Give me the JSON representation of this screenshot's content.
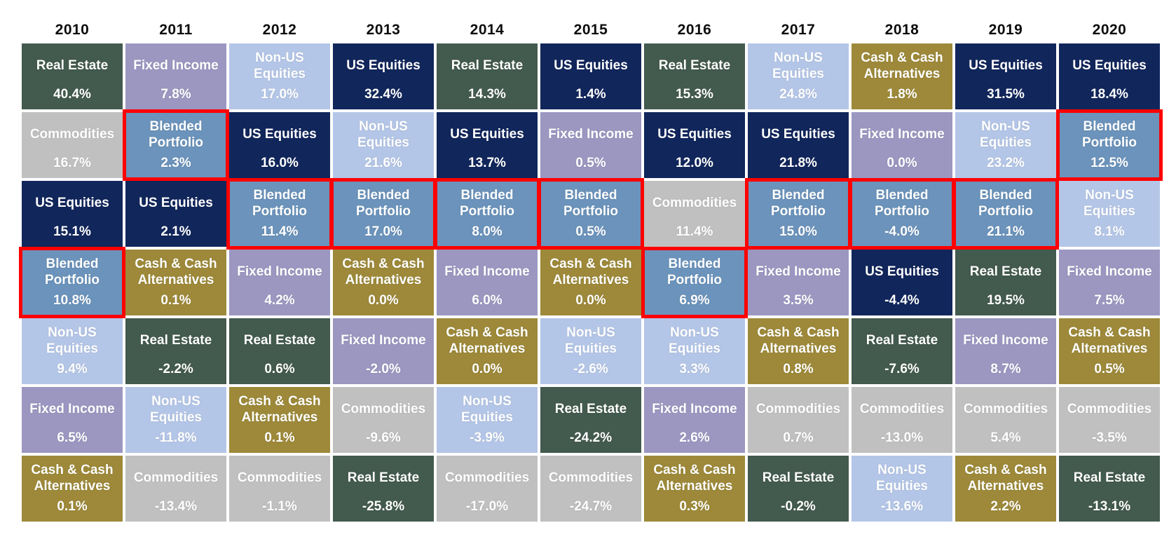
{
  "chart_data": {
    "type": "table",
    "title": "",
    "description": "Annual asset class total returns quilt by year, with Blended Portfolio cells outlined in red",
    "years": [
      "2010",
      "2011",
      "2012",
      "2013",
      "2014",
      "2015",
      "2016",
      "2017",
      "2018",
      "2019",
      "2020"
    ],
    "asset_classes": [
      "Real Estate",
      "US Equities",
      "Non-US Equities",
      "Fixed Income",
      "Commodities",
      "Cash & Cash Alternatives",
      "Blended Portfolio"
    ],
    "asset_colors": {
      "Real Estate": "#435A4E",
      "US Equities": "#11265B",
      "Non-US Equities": "#B4C6E7",
      "Fixed Income": "#9B97C1",
      "Commodities": "#C1C0C0",
      "Cash & Cash Alternatives": "#9D8939",
      "Blended Portfolio": "#6B93BB"
    },
    "text_color": "#FFFFFF",
    "year_label_color": "#0D0D0D",
    "highlight": {
      "asset": "Blended Portfolio",
      "border_color": "#FF0000"
    },
    "columns": [
      {
        "year": "2010",
        "cells": [
          {
            "asset": "Real Estate",
            "value": "40.4%"
          },
          {
            "asset": "Commodities",
            "value": "16.7%"
          },
          {
            "asset": "US Equities",
            "value": "15.1%"
          },
          {
            "asset": "Blended Portfolio",
            "value": "10.8%"
          },
          {
            "asset": "Non-US Equities",
            "value": "9.4%"
          },
          {
            "asset": "Fixed Income",
            "value": "6.5%"
          },
          {
            "asset": "Cash & Cash Alternatives",
            "value": "0.1%"
          }
        ]
      },
      {
        "year": "2011",
        "cells": [
          {
            "asset": "Fixed Income",
            "value": "7.8%"
          },
          {
            "asset": "Blended Portfolio",
            "value": "2.3%"
          },
          {
            "asset": "US Equities",
            "value": "2.1%"
          },
          {
            "asset": "Cash & Cash Alternatives",
            "value": "0.1%"
          },
          {
            "asset": "Real Estate",
            "value": "-2.2%"
          },
          {
            "asset": "Non-US Equities",
            "value": "-11.8%"
          },
          {
            "asset": "Commodities",
            "value": "-13.4%"
          }
        ]
      },
      {
        "year": "2012",
        "cells": [
          {
            "asset": "Non-US Equities",
            "value": "17.0%"
          },
          {
            "asset": "US Equities",
            "value": "16.0%"
          },
          {
            "asset": "Blended Portfolio",
            "value": "11.4%"
          },
          {
            "asset": "Fixed Income",
            "value": "4.2%"
          },
          {
            "asset": "Real Estate",
            "value": "0.6%"
          },
          {
            "asset": "Cash & Cash Alternatives",
            "value": "0.1%"
          },
          {
            "asset": "Commodities",
            "value": "-1.1%"
          }
        ]
      },
      {
        "year": "2013",
        "cells": [
          {
            "asset": "US Equities",
            "value": "32.4%"
          },
          {
            "asset": "Non-US Equities",
            "value": "21.6%"
          },
          {
            "asset": "Blended Portfolio",
            "value": "17.0%"
          },
          {
            "asset": "Cash & Cash Alternatives",
            "value": "0.0%"
          },
          {
            "asset": "Fixed Income",
            "value": "-2.0%"
          },
          {
            "asset": "Commodities",
            "value": "-9.6%"
          },
          {
            "asset": "Real Estate",
            "value": "-25.8%"
          }
        ]
      },
      {
        "year": "2014",
        "cells": [
          {
            "asset": "Real Estate",
            "value": "14.3%"
          },
          {
            "asset": "US Equities",
            "value": "13.7%"
          },
          {
            "asset": "Blended Portfolio",
            "value": "8.0%"
          },
          {
            "asset": "Fixed Income",
            "value": "6.0%"
          },
          {
            "asset": "Cash & Cash Alternatives",
            "value": "0.0%"
          },
          {
            "asset": "Non-US Equities",
            "value": "-3.9%"
          },
          {
            "asset": "Commodities",
            "value": "-17.0%"
          }
        ]
      },
      {
        "year": "2015",
        "cells": [
          {
            "asset": "US Equities",
            "value": "1.4%"
          },
          {
            "asset": "Fixed Income",
            "value": "0.5%"
          },
          {
            "asset": "Blended Portfolio",
            "value": "0.5%"
          },
          {
            "asset": "Cash & Cash Alternatives",
            "value": "0.0%"
          },
          {
            "asset": "Non-US Equities",
            "value": "-2.6%"
          },
          {
            "asset": "Real Estate",
            "value": "-24.2%"
          },
          {
            "asset": "Commodities",
            "value": "-24.7%"
          }
        ]
      },
      {
        "year": "2016",
        "cells": [
          {
            "asset": "Real Estate",
            "value": "15.3%"
          },
          {
            "asset": "US Equities",
            "value": "12.0%"
          },
          {
            "asset": "Commodities",
            "value": "11.4%"
          },
          {
            "asset": "Blended Portfolio",
            "value": "6.9%"
          },
          {
            "asset": "Non-US Equities",
            "value": "3.3%"
          },
          {
            "asset": "Fixed Income",
            "value": "2.6%"
          },
          {
            "asset": "Cash & Cash Alternatives",
            "value": "0.3%"
          }
        ]
      },
      {
        "year": "2017",
        "cells": [
          {
            "asset": "Non-US Equities",
            "value": "24.8%"
          },
          {
            "asset": "US Equities",
            "value": "21.8%"
          },
          {
            "asset": "Blended Portfolio",
            "value": "15.0%"
          },
          {
            "asset": "Fixed Income",
            "value": "3.5%"
          },
          {
            "asset": "Cash & Cash Alternatives",
            "value": "0.8%"
          },
          {
            "asset": "Commodities",
            "value": "0.7%"
          },
          {
            "asset": "Real Estate",
            "value": "-0.2%"
          }
        ]
      },
      {
        "year": "2018",
        "cells": [
          {
            "asset": "Cash & Cash Alternatives",
            "value": "1.8%"
          },
          {
            "asset": "Fixed Income",
            "value": "0.0%"
          },
          {
            "asset": "Blended Portfolio",
            "value": "-4.0%"
          },
          {
            "asset": "US Equities",
            "value": "-4.4%"
          },
          {
            "asset": "Real Estate",
            "value": "-7.6%"
          },
          {
            "asset": "Commodities",
            "value": "-13.0%"
          },
          {
            "asset": "Non-US Equities",
            "value": "-13.6%"
          }
        ]
      },
      {
        "year": "2019",
        "cells": [
          {
            "asset": "US Equities",
            "value": "31.5%"
          },
          {
            "asset": "Non-US Equities",
            "value": "23.2%"
          },
          {
            "asset": "Blended Portfolio",
            "value": "21.1%"
          },
          {
            "asset": "Real Estate",
            "value": "19.5%"
          },
          {
            "asset": "Fixed Income",
            "value": "8.7%"
          },
          {
            "asset": "Commodities",
            "value": "5.4%"
          },
          {
            "asset": "Cash & Cash Alternatives",
            "value": "2.2%"
          }
        ]
      },
      {
        "year": "2020",
        "cells": [
          {
            "asset": "US Equities",
            "value": "18.4%"
          },
          {
            "asset": "Blended Portfolio",
            "value": "12.5%"
          },
          {
            "asset": "Non-US Equities",
            "value": "8.1%"
          },
          {
            "asset": "Fixed Income",
            "value": "7.5%"
          },
          {
            "asset": "Cash & Cash Alternatives",
            "value": "0.5%"
          },
          {
            "asset": "Commodities",
            "value": "-3.5%"
          },
          {
            "asset": "Real Estate",
            "value": "-13.1%"
          }
        ]
      }
    ]
  }
}
